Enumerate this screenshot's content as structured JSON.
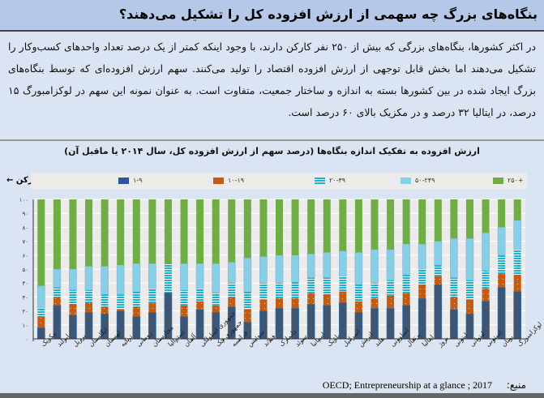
{
  "header": {
    "title": "بنگاه‌های بزرگ چه سهمی از ارزش افزوده کل را تشکیل می‌دهند؟"
  },
  "paragraph": "در اکثر کشورها، بنگاه‌های بزرگی که بیش از ۲۵۰ نفر کارکن دارند، با وجود اینکه کمتر از یک درصد تعداد واحدهای کسب‌وکار را تشکیل می‌دهند اما بخش قابل توجهی از ارزش افزوده اقتصاد را تولید می‌کنند. سهم ارزش افزوده‌ای که توسط بنگاه‌های بزرگ ایجاد شده در بین کشورها بسته به اندازه و ساختار جمعیت، متفاوت است. به عنوان نمونه این سهم در لوکزامبورگ ۱۵ درصد، در ایتالیا ۳۲ درصد و در مکزیک بالای ۶۰ درصد است.",
  "source": {
    "label": "منبع:",
    "text": "OECD; Entrepreneurship at a glance ; 2017"
  },
  "colors": {
    "s1": "#3e5573",
    "s2": "#c55a11",
    "s3": "#1fb0d0",
    "s4": "#87cfe4",
    "s5": "#70ad47"
  },
  "chart_data": {
    "type": "bar",
    "stacked": true,
    "title": "ارزش افزوده به تفکیک اندازه بنگاه‌ها (درصد سهم از ارزش افزوده کل، سال ۲۰۱۴ یا ماقبل آن)",
    "legend_unit": "نفر کارکن",
    "legend_placement": "top",
    "ylim": [
      0,
      100
    ],
    "yticks": [
      0,
      10,
      20,
      30,
      40,
      50,
      60,
      70,
      80,
      90,
      100
    ],
    "ytick_labels": [
      "۰",
      "۱۰",
      "۲۰",
      "۳۰",
      "۴۰",
      "۵۰",
      "۶۰",
      "۷۰",
      "۸۰",
      "۹۰",
      "۱۰۰"
    ],
    "grid": true,
    "categories": [
      "مکزیک",
      "ایرلند",
      "برزیل",
      "انگلستان",
      "لهستان",
      "ترکیه",
      "رومانی",
      "مجارستان",
      "استرالیا",
      "آلمان",
      "جمهوری اسلواکی",
      "جمهوری چک",
      "فرانسه",
      "سوئیس",
      "فنلاند",
      "دانمارک",
      "سوئد",
      "اسپانیا",
      "بلژیک",
      "اسرائیل",
      "اتریش",
      "هلند",
      "اسلوونی",
      "پرتغال",
      "ایتالیا",
      "نروژ",
      "لیتونی",
      "لیتوانی",
      "استونی",
      "یونان",
      "لوکزامبورگ"
    ],
    "series": [
      {
        "name": "۱-۹",
        "values": [
          8,
          24,
          17,
          19,
          18,
          20,
          16,
          19,
          33,
          16,
          21,
          19,
          23,
          12,
          20,
          22,
          22,
          25,
          24,
          26,
          19,
          22,
          22,
          24,
          29,
          39,
          21,
          18,
          27,
          37,
          34
        ]
      },
      {
        "name": "۱۰-۱۹",
        "values": [
          8,
          6,
          8,
          7,
          5,
          1,
          7,
          7,
          0,
          8,
          6,
          5,
          7,
          9,
          8,
          7,
          7,
          8,
          8,
          8,
          8,
          7,
          9,
          9,
          10,
          6,
          9,
          10,
          9,
          10,
          12
        ]
      },
      {
        "name": "۲۰-۴۹",
        "values": [
          6,
          7,
          10,
          9,
          9,
          11,
          11,
          10,
          21,
          11,
          9,
          9,
          10,
          13,
          12,
          11,
          12,
          11,
          12,
          11,
          12,
          11,
          11,
          13,
          11,
          8,
          14,
          14,
          13,
          13,
          18
        ]
      },
      {
        "name": "۵۰-۲۴۹",
        "values": [
          16,
          13,
          15,
          17,
          20,
          21,
          20,
          18,
          0,
          19,
          18,
          21,
          15,
          24,
          19,
          20,
          19,
          17,
          18,
          18,
          23,
          24,
          22,
          22,
          18,
          17,
          28,
          30,
          27,
          20,
          21
        ]
      },
      {
        "name": "۲۵۰+",
        "values": [
          62,
          50,
          50,
          48,
          48,
          47,
          46,
          46,
          46,
          46,
          46,
          46,
          45,
          42,
          41,
          40,
          40,
          39,
          38,
          37,
          38,
          36,
          36,
          32,
          32,
          30,
          28,
          28,
          24,
          20,
          15
        ]
      }
    ]
  }
}
